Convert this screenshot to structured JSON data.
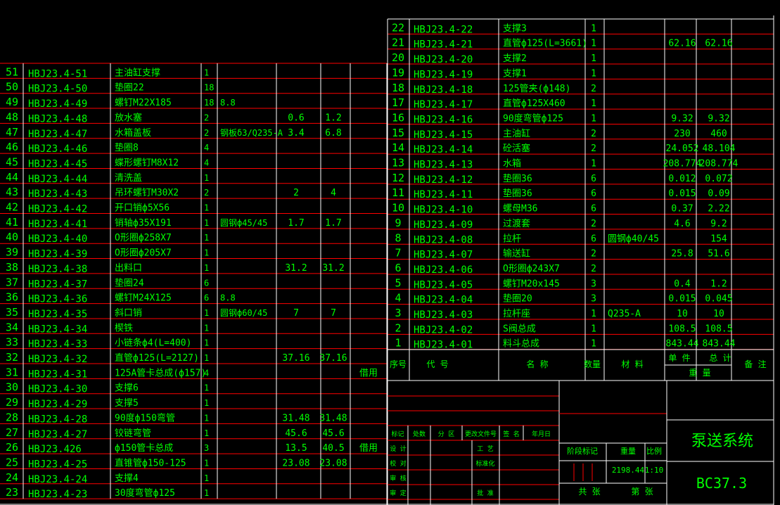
{
  "colors": {
    "background": "#000000",
    "text": "#00ff00",
    "row_line": "#ff0000",
    "border": "#ffffff"
  },
  "left_table": {
    "rows": [
      [
        "51",
        "HBJ23.4-51",
        "主油缸支撑",
        "1",
        "",
        "",
        "",
        ""
      ],
      [
        "50",
        "HBJ23.4-50",
        "垫圈22",
        "18",
        "",
        "",
        "",
        ""
      ],
      [
        "49",
        "HBJ23.4-49",
        "螺钉M22X185",
        "18",
        "8.8",
        "",
        "",
        ""
      ],
      [
        "48",
        "HBJ23.4-48",
        "放水塞",
        "2",
        "",
        "0.6",
        "1.2",
        ""
      ],
      [
        "47",
        "HBJ23.4-47",
        "水箱盖板",
        "2",
        "钢板δ3/Q235-A",
        "3.4",
        "6.8",
        ""
      ],
      [
        "46",
        "HBJ23.4-46",
        "垫圈8",
        "4",
        "",
        "",
        "",
        ""
      ],
      [
        "45",
        "HBJ23.4-45",
        "蝶形螺钉M8X12",
        "4",
        "",
        "",
        "",
        ""
      ],
      [
        "44",
        "HBJ23.4-44",
        "清洗盖",
        "1",
        "",
        "",
        "",
        ""
      ],
      [
        "43",
        "HBJ23.4-43",
        "吊环螺钉M30X2",
        "2",
        "",
        "2",
        "4",
        ""
      ],
      [
        "42",
        "HBJ23.4-42",
        "开口销ф5X56",
        "1",
        "",
        "",
        "",
        ""
      ],
      [
        "41",
        "HBJ23.4-41",
        "销轴ф35X191",
        "1",
        "圆钢ф45/45",
        "1.7",
        "1.7",
        ""
      ],
      [
        "40",
        "HBJ23.4-40",
        "O形圈ф258X7",
        "1",
        "",
        "",
        "",
        ""
      ],
      [
        "39",
        "HBJ23.4-39",
        "O形圈ф205X7",
        "1",
        "",
        "",
        "",
        ""
      ],
      [
        "38",
        "HBJ23.4-38",
        "出料口",
        "1",
        "",
        "31.2",
        "31.2",
        ""
      ],
      [
        "37",
        "HBJ23.4-37",
        "垫圈24",
        "6",
        "",
        "",
        "",
        ""
      ],
      [
        "36",
        "HBJ23.4-36",
        "螺钉M24X125",
        "6",
        "8.8",
        "",
        "",
        ""
      ],
      [
        "35",
        "HBJ23.4-35",
        "斜口销",
        "1",
        "圆钢ф60/45",
        "7",
        "7",
        ""
      ],
      [
        "34",
        "HBJ23.4-34",
        "楔铁",
        "1",
        "",
        "",
        "",
        ""
      ],
      [
        "33",
        "HBJ23.4-33",
        "小链条ф4(L=400)",
        "1",
        "",
        "",
        "",
        ""
      ],
      [
        "32",
        "HBJ23.4-32",
        "直管ф125(L=2127)",
        "1",
        "",
        "37.16",
        "37.16",
        ""
      ],
      [
        "31",
        "HBJ23.4-31",
        "125A管卡总成(ф157)",
        "4",
        "",
        "",
        "",
        "借用"
      ],
      [
        "30",
        "HBJ23.4-30",
        "支撑6",
        "1",
        "",
        "",
        "",
        ""
      ],
      [
        "29",
        "HBJ23.4-29",
        "支撑5",
        "1",
        "",
        "",
        "",
        ""
      ],
      [
        "28",
        "HBJ23.4-28",
        "90度ф150弯管",
        "1",
        "",
        "31.48",
        "31.48",
        ""
      ],
      [
        "27",
        "HBJ23.4-27",
        "铰链弯管",
        "1",
        "",
        "45.6",
        "45.6",
        ""
      ],
      [
        "26",
        "HBJ23.426",
        "ф150管卡总成",
        "3",
        "",
        "13.5",
        "40.5",
        "借用"
      ],
      [
        "25",
        "HBJ23.4-25",
        "直锥管ф150-125",
        "1",
        "",
        "23.08",
        "23.08",
        ""
      ],
      [
        "24",
        "HBJ23.4-24",
        "支撑4",
        "1",
        "",
        "",
        "",
        ""
      ],
      [
        "23",
        "HBJ23.4-23",
        "30度弯管ф125",
        "1",
        "",
        "",
        "",
        ""
      ]
    ]
  },
  "right_table": {
    "rows": [
      [
        "22",
        "HBJ23.4-22",
        "支撑3",
        "1",
        "",
        "",
        "",
        ""
      ],
      [
        "21",
        "HBJ23.4-21",
        "直管ф125(L=3661)",
        "1",
        "",
        "62.16",
        "62.16",
        ""
      ],
      [
        "20",
        "HBJ23.4-20",
        "支撑2",
        "1",
        "",
        "",
        "",
        ""
      ],
      [
        "19",
        "HBJ23.4-19",
        "支撑1",
        "1",
        "",
        "",
        "",
        ""
      ],
      [
        "18",
        "HBJ23.4-18",
        "125管夹(ф148)",
        "2",
        "",
        "",
        "",
        ""
      ],
      [
        "17",
        "HBJ23.4-17",
        "直管ф125X460",
        "1",
        "",
        "",
        "",
        ""
      ],
      [
        "16",
        "HBJ23.4-16",
        "90度弯管ф125",
        "1",
        "",
        "9.32",
        "9.32",
        ""
      ],
      [
        "15",
        "HBJ23.4-15",
        "主油缸",
        "2",
        "",
        "230",
        "460",
        ""
      ],
      [
        "14",
        "HBJ23.4-14",
        "砼活塞",
        "2",
        "",
        "24.052",
        "48.104",
        ""
      ],
      [
        "13",
        "HBJ23.4-13",
        "水箱",
        "1",
        "",
        "208.774",
        "208.774",
        ""
      ],
      [
        "12",
        "HBJ23.4-12",
        "垫圈36",
        "6",
        "",
        "0.012",
        "0.072",
        ""
      ],
      [
        "11",
        "HBJ23.4-11",
        "垫圈36",
        "6",
        "",
        "0.015",
        "0.09",
        ""
      ],
      [
        "10",
        "HBJ23.4-10",
        "螺母M36",
        "6",
        "",
        "0.37",
        "2.22",
        ""
      ],
      [
        "9",
        "HBJ23.4-09",
        "过渡套",
        "2",
        "",
        "4.6",
        "9.2",
        ""
      ],
      [
        "8",
        "HBJ23.4-08",
        "拉杆",
        "6",
        "圆钢ф40/45",
        "",
        "154",
        ""
      ],
      [
        "7",
        "HBJ23.4-07",
        "输送缸",
        "2",
        "",
        "25.8",
        "51.6",
        ""
      ],
      [
        "6",
        "HBJ23.4-06",
        "O形圈ф243X7",
        "2",
        "",
        "",
        "",
        ""
      ],
      [
        "5",
        "HBJ23.4-05",
        "螺钉M20x145",
        "3",
        "",
        "0.4",
        "1.2",
        ""
      ],
      [
        "4",
        "HBJ23.4-04",
        "垫圈20",
        "3",
        "",
        "0.015",
        "0.045",
        ""
      ],
      [
        "3",
        "HBJ23.4-03",
        "拉杆座",
        "1",
        "Q235-A",
        "10",
        "10",
        ""
      ],
      [
        "2",
        "HBJ23.4-02",
        "S阀总成",
        "1",
        "",
        "108.5",
        "108.5",
        ""
      ],
      [
        "1",
        "HBJ23.4-01",
        "料斗总成",
        "1",
        "",
        "843.44",
        "843.44",
        ""
      ]
    ],
    "header": {
      "seq": "序号",
      "code": "代  号",
      "name": "名  称",
      "qty": "数量",
      "material": "材  料",
      "single": "单 件",
      "total": "总 计",
      "weight": "重  量",
      "remark": "备 注"
    }
  },
  "title_block": {
    "rev_labels": [
      "标记",
      "处数",
      "分 区",
      "更改文件号",
      "签 名",
      "年月日"
    ],
    "left_labels": [
      "设 计",
      "校 对",
      "审 核",
      "审 定"
    ],
    "mid_labels": [
      "工 艺",
      "标准化",
      "",
      "批 准"
    ],
    "stage_label": "阶段标记",
    "weight_label": "重量",
    "scale_label": "比例",
    "weight_value": "2198.44",
    "scale_value": "1:10",
    "sheets_label": "共   张",
    "sheet_label": "第   张",
    "drawing_title": "泵送系统",
    "drawing_code": "BC37.3"
  }
}
